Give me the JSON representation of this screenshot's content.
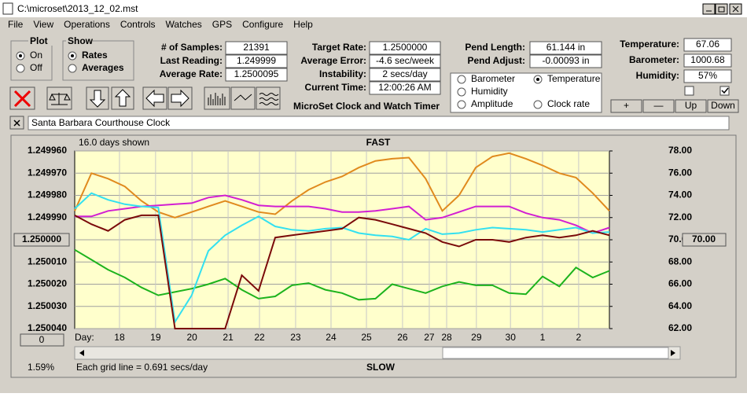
{
  "window": {
    "title": "C:\\microset\\2013_12_02.mst"
  },
  "menu": [
    "File",
    "View",
    "Operations",
    "Controls",
    "Watches",
    "GPS",
    "Configure",
    "Help"
  ],
  "plot_group": {
    "title": "Plot",
    "options": [
      "On",
      "Off"
    ],
    "selected": 0
  },
  "show_group": {
    "title": "Show",
    "options": [
      "Rates",
      "Averages"
    ],
    "selected": 0
  },
  "fields": [
    {
      "label": "# of Samples:",
      "value": "21391"
    },
    {
      "label": "Last Reading:",
      "value": "1.249999"
    },
    {
      "label": "Average Rate:",
      "value": "1.2500095"
    },
    {
      "label": "Target Rate:",
      "value": "1.2500000"
    },
    {
      "label": "Average Error:",
      "value": "-4.6 sec/week"
    },
    {
      "label": "Instability:",
      "value": "2 secs/day"
    },
    {
      "label": "Current Time:",
      "value": "12:00:26 AM"
    },
    {
      "label": "Pend Length:",
      "value": "61.144 in"
    },
    {
      "label": "Pend Adjust:",
      "value": "-0.00093 in"
    },
    {
      "label": "Temperature:",
      "value": "67.06"
    },
    {
      "label": "Barometer:",
      "value": "1000.68"
    },
    {
      "label": "Humidity:",
      "value": "57%"
    }
  ],
  "app_name": "MicroSet Clock and Watch Timer",
  "buttons": [
    "+",
    "—",
    "Up",
    "Down"
  ],
  "watch_name": "Santa Barbara Courthouse Clock",
  "chart_data": {
    "type": "line",
    "header": "16.0 days shown",
    "top_label": "FAST",
    "bottom_label": "SLOW",
    "footnote": "Each grid line = 0.691 secs/day",
    "corner_label": "1.59%",
    "left_box": "1.250000",
    "right_box": "70.00",
    "slider_box": "0",
    "x_label": "Day:",
    "selected_series": 1,
    "xlim": [
      0,
      16
    ],
    "xticks": [
      {
        "value": 1.34,
        "label": "18"
      },
      {
        "value": 2.42,
        "label": "19"
      },
      {
        "value": 3.51,
        "label": "20"
      },
      {
        "value": 4.59,
        "label": "21"
      },
      {
        "value": 5.53,
        "label": "22"
      },
      {
        "value": 6.61,
        "label": "23"
      },
      {
        "value": 7.67,
        "label": "24"
      },
      {
        "value": 8.73,
        "label": "25"
      },
      {
        "value": 9.81,
        "label": "26"
      },
      {
        "value": 10.61,
        "label": "27"
      },
      {
        "value": 11.13,
        "label": "28"
      },
      {
        "value": 12.02,
        "label": "29"
      },
      {
        "value": 13.04,
        "label": "30"
      },
      {
        "value": 14.0,
        "label": "1"
      },
      {
        "value": 15.08,
        "label": "2"
      }
    ],
    "ylim": [
      1.24996,
      1.25004
    ],
    "y_inverted": true,
    "yticks": [
      {
        "value": 1.24996,
        "label": "1.249960"
      },
      {
        "value": 1.24997,
        "label": "1.249970"
      },
      {
        "value": 1.24998,
        "label": "1.249980"
      },
      {
        "value": 1.24999,
        "label": "1.249990"
      },
      {
        "value": 1.25,
        "label": "1.250000"
      },
      {
        "value": 1.25001,
        "label": "1.250010"
      },
      {
        "value": 1.25002,
        "label": "1.250020"
      },
      {
        "value": 1.25003,
        "label": "1.250030"
      },
      {
        "value": 1.25004,
        "label": "1.250040"
      }
    ],
    "y2lim": [
      62,
      78
    ],
    "y2ticks": [
      {
        "value": 78,
        "label": "78.00"
      },
      {
        "value": 76,
        "label": "76.00"
      },
      {
        "value": 74,
        "label": "74.00"
      },
      {
        "value": 72,
        "label": "72.00"
      },
      {
        "value": 70,
        "label": "70.00"
      },
      {
        "value": 68,
        "label": "68.00"
      },
      {
        "value": 66,
        "label": "66.00"
      },
      {
        "value": 64,
        "label": "64.00"
      },
      {
        "value": 62,
        "label": "62.00"
      }
    ],
    "grid": true,
    "x": [
      0,
      0.5,
      1,
      1.5,
      2,
      2.5,
      3,
      3.5,
      4,
      4.5,
      5,
      5.5,
      6,
      6.5,
      7,
      7.5,
      8,
      8.5,
      9,
      9.5,
      10,
      10.5,
      11,
      11.5,
      12,
      12.5,
      13,
      13.5,
      14,
      14.5,
      15,
      15.5,
      16
    ],
    "series": [
      {
        "name": "Barometer",
        "color": "#e08a1e",
        "axis": "y2",
        "values": [
          72.6,
          76.0,
          75.5,
          74.8,
          73.5,
          72.5,
          72.0,
          72.5,
          73.0,
          73.5,
          73.0,
          72.5,
          72.3,
          73.5,
          74.5,
          75.2,
          75.7,
          76.5,
          77.1,
          77.3,
          77.4,
          75.5,
          72.6,
          74.0,
          76.5,
          77.5,
          77.8,
          77.3,
          76.7,
          76.0,
          75.6,
          74.2,
          72.6
        ]
      },
      {
        "name": "Temperature",
        "color": "#1db31d",
        "axis": "y2",
        "values": [
          69.1,
          68.2,
          67.3,
          66.6,
          65.7,
          65.0,
          65.3,
          65.6,
          66.0,
          66.5,
          65.5,
          64.7,
          64.9,
          65.9,
          66.1,
          65.5,
          65.2,
          64.6,
          64.7,
          66.0,
          65.6,
          65.2,
          65.8,
          66.2,
          65.9,
          65.9,
          65.2,
          65.1,
          66.7,
          65.8,
          67.5,
          66.6,
          67.2
        ]
      },
      {
        "name": "Humidity",
        "color": "#d21fd2",
        "axis": "y2",
        "values": [
          72.1,
          72.1,
          72.6,
          72.8,
          73.0,
          73.1,
          73.2,
          73.3,
          73.8,
          74.0,
          73.6,
          73.1,
          73.0,
          73.0,
          73.0,
          72.8,
          72.5,
          72.5,
          72.6,
          72.8,
          73.0,
          71.8,
          72.0,
          72.5,
          73.0,
          73.0,
          73.0,
          72.4,
          72.0,
          71.8,
          71.3,
          70.6,
          71.1
        ]
      },
      {
        "name": "Amplitude",
        "color": "#33e0f0",
        "axis": "y2",
        "values": [
          72.8,
          74.2,
          73.6,
          73.2,
          73.0,
          72.9,
          62.6,
          65.0,
          69.0,
          70.4,
          71.3,
          72.1,
          71.2,
          70.9,
          70.8,
          71.0,
          71.1,
          70.6,
          70.4,
          70.3,
          70.0,
          71.0,
          70.5,
          70.6,
          70.9,
          71.1,
          71.0,
          70.9,
          70.7,
          70.9,
          71.1,
          70.6,
          70.7
        ]
      },
      {
        "name": "Clock rate",
        "color": "#7a0a0a",
        "axis": "y",
        "values": [
          1.249989,
          1.249993,
          1.249996,
          1.249991,
          1.249989,
          1.249989,
          1.25004,
          1.25004,
          1.25004,
          1.25004,
          1.250016,
          1.250023,
          1.249999,
          1.249998,
          1.249997,
          1.249996,
          1.249995,
          1.24999,
          1.249991,
          1.249993,
          1.249995,
          1.249997,
          1.250001,
          1.250003,
          1.25,
          1.25,
          1.250001,
          1.249999,
          1.249998,
          1.249999,
          1.249998,
          1.249996,
          1.249998
        ]
      }
    ]
  }
}
